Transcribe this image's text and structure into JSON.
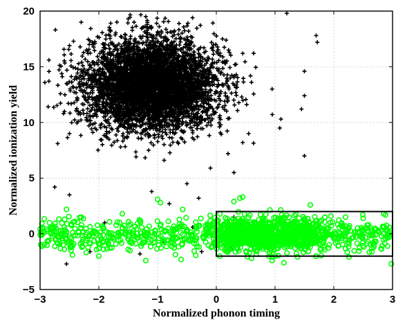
{
  "chart_data": {
    "type": "scatter",
    "title": "",
    "xlabel": "Normalized phonon timing",
    "ylabel": "Normalized ionization yield",
    "xlim": [
      -3,
      3
    ],
    "ylim": [
      -5,
      20
    ],
    "xticks": [
      "−3",
      "−2",
      "−1",
      "0",
      "1",
      "2",
      "3"
    ],
    "yticks": [
      "−5",
      "0",
      "5",
      "10",
      "15",
      "20"
    ],
    "grid": true,
    "series": [
      {
        "marker": "plus",
        "color": "#000000",
        "count": 5000,
        "distribution": {
          "x_mean": -1.1,
          "x_sd": 0.55,
          "y_mean": 13.4,
          "y_sd": 2.0
        },
        "outliers": [
          [
            -1.5,
            19.3
          ],
          [
            -1.4,
            19.0
          ],
          [
            -1.2,
            19.5
          ],
          [
            1.2,
            19.8
          ],
          [
            1.7,
            17.8
          ],
          [
            1.72,
            17.2
          ],
          [
            0.45,
            16.2
          ],
          [
            1.5,
            14.6
          ],
          [
            0.95,
            13.0
          ],
          [
            1.5,
            12.4
          ],
          [
            1.45,
            11.2
          ],
          [
            1.1,
            10.3
          ],
          [
            0.55,
            9.0
          ],
          [
            0.45,
            8.2
          ],
          [
            0.2,
            7.2
          ],
          [
            1.08,
            9.5
          ],
          [
            1.5,
            7.0
          ],
          [
            0.3,
            5.5
          ],
          [
            -0.1,
            5.9
          ],
          [
            -0.5,
            4.5
          ],
          [
            -1.1,
            3.8
          ],
          [
            -0.3,
            3.2
          ],
          [
            -0.8,
            2.7
          ],
          [
            -2.5,
            3.5
          ],
          [
            -2.75,
            4.2
          ],
          [
            -2.7,
            8.1
          ],
          [
            -2.5,
            9.0
          ],
          [
            -2.6,
            10.8
          ],
          [
            -2.85,
            13.7
          ],
          [
            -2.85,
            15.6
          ],
          [
            -2.5,
            16.9
          ],
          [
            -2.3,
            19.0
          ],
          [
            -1.8,
            18.2
          ],
          [
            -0.25,
            -1.6
          ],
          [
            0.25,
            -1.4
          ],
          [
            -2.55,
            -2.7
          ],
          [
            -2.15,
            -1.6
          ],
          [
            -1.3,
            -1.8
          ],
          [
            -1.9,
            1.0
          ],
          [
            -0.4,
            0.6
          ],
          [
            -0.9,
            -0.6
          ],
          [
            0.3,
            1.5
          ],
          [
            0.7,
            -0.8
          ]
        ]
      },
      {
        "marker": "circle",
        "color": "#00ff00",
        "count": 1500,
        "distribution": {
          "x_min": -3.0,
          "x_max": 2.95,
          "y_mean": -0.1,
          "y_sd": 0.75
        },
        "outliers": [
          [
            -2.98,
            0.0
          ],
          [
            -3.0,
            -0.1
          ],
          [
            0.4,
            3.2
          ],
          [
            0.45,
            3.3
          ],
          [
            0.3,
            2.9
          ],
          [
            -1.0,
            3.1
          ],
          [
            -0.95,
            2.8
          ],
          [
            -1.6,
            1.8
          ],
          [
            -2.3,
            1.5
          ],
          [
            -2.55,
            2.2
          ],
          [
            2.98,
            -2.7
          ],
          [
            2.85,
            1.8
          ],
          [
            1.15,
            -2.6
          ],
          [
            0.95,
            -2.4
          ],
          [
            0.6,
            -2.2
          ],
          [
            -0.6,
            -2.3
          ],
          [
            -1.2,
            -2.4
          ],
          [
            -2.0,
            -2.0
          ],
          [
            -2.45,
            -1.9
          ],
          [
            1.6,
            2.6
          ],
          [
            2.2,
            1.5
          ],
          [
            2.65,
            -1.6
          ]
        ]
      }
    ],
    "annotation": {
      "type": "rectangle",
      "x_range": [
        0,
        3
      ],
      "y_range": [
        -2,
        2
      ],
      "color": "#000000"
    }
  }
}
